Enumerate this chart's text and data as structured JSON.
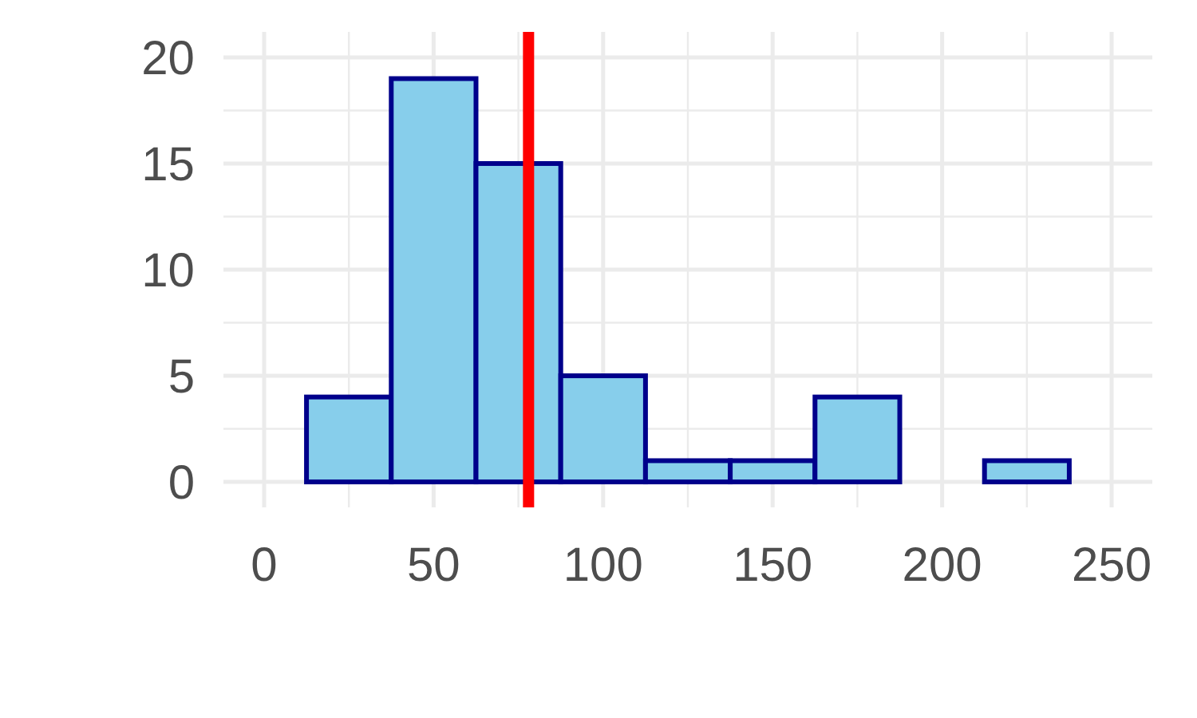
{
  "chart_data": {
    "type": "histogram",
    "bins": [
      12.5,
      37.5,
      62.5,
      87.5,
      112.5,
      137.5,
      162.5,
      187.5,
      212.5,
      237.5
    ],
    "values": [
      4,
      19,
      15,
      5,
      1,
      1,
      4,
      0,
      1
    ],
    "color": "#87ceeb",
    "xlim": [
      -12,
      262
    ],
    "xticks": [
      0,
      50,
      100,
      150,
      200,
      250
    ],
    "ylim": [
      -1.2,
      21.2
    ],
    "yticks": [
      0,
      5,
      10,
      15,
      20
    ],
    "grid": true,
    "ref_lines": [
      {
        "axis": "x",
        "value": 78,
        "color": "#ff0000"
      }
    ]
  }
}
